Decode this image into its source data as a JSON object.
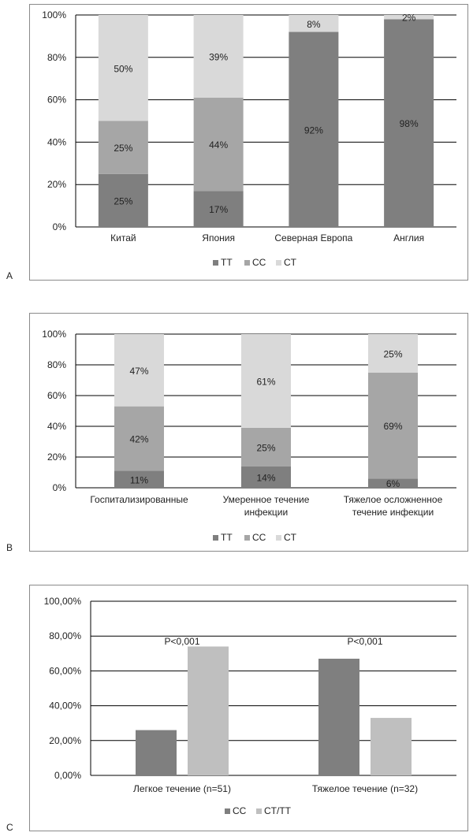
{
  "panels": [
    {
      "letter": "A"
    },
    {
      "letter": "B"
    },
    {
      "letter": "C"
    }
  ],
  "colors": {
    "TT": "#7f7f7f",
    "CC": "#a6a6a6",
    "CT": "#d9d9d9",
    "C_CC": "#7f7f7f",
    "C_CTTT": "#bfbfbf"
  },
  "chart_data": [
    {
      "type": "bar",
      "stacked": true,
      "categories": [
        "Китай",
        "Япония",
        "Северная Европа",
        "Англия"
      ],
      "series": [
        {
          "name": "TT",
          "values": [
            25,
            17,
            92,
            98
          ],
          "labels": [
            "25%",
            "17%",
            "92%",
            "98%"
          ]
        },
        {
          "name": "CC",
          "values": [
            25,
            44,
            0,
            0
          ],
          "labels": [
            "25%",
            "44%",
            "",
            ""
          ]
        },
        {
          "name": "CT",
          "values": [
            50,
            39,
            8,
            2
          ],
          "labels": [
            "50%",
            "39%",
            "8%",
            "2%"
          ]
        }
      ],
      "ylim": [
        0,
        100
      ],
      "yticks": [
        "0%",
        "20%",
        "40%",
        "60%",
        "80%",
        "100%"
      ],
      "legend": "bottom",
      "grid": true
    },
    {
      "type": "bar",
      "stacked": true,
      "categories": [
        [
          "Госпитализированные"
        ],
        [
          "Умеренное течение",
          "инфекции"
        ],
        [
          "Тяжелое осложненное",
          "течение инфекции"
        ]
      ],
      "series": [
        {
          "name": "TT",
          "values": [
            11,
            14,
            6
          ],
          "labels": [
            "11%",
            "14%",
            "6%"
          ]
        },
        {
          "name": "CC",
          "values": [
            42,
            25,
            69
          ],
          "labels": [
            "42%",
            "25%",
            "69%"
          ]
        },
        {
          "name": "CT",
          "values": [
            47,
            61,
            25
          ],
          "labels": [
            "47%",
            "61%",
            "25%"
          ]
        }
      ],
      "ylim": [
        0,
        100
      ],
      "yticks": [
        "0%",
        "20%",
        "40%",
        "60%",
        "80%",
        "100%"
      ],
      "legend": "bottom",
      "grid": true
    },
    {
      "type": "bar",
      "stacked": false,
      "categories": [
        "Легкое течение (n=51)",
        "Тяжелое течение (n=32)"
      ],
      "series": [
        {
          "name": "CC",
          "values": [
            26,
            67
          ]
        },
        {
          "name": "CT/TT",
          "values": [
            74,
            33
          ]
        }
      ],
      "annotations": [
        "P<0,001",
        "P<0,001"
      ],
      "ylim": [
        0,
        100
      ],
      "yticks": [
        "0,00%",
        "20,00%",
        "40,00%",
        "60,00%",
        "80,00%",
        "100,00%"
      ],
      "legend": "bottom",
      "grid": true
    }
  ]
}
